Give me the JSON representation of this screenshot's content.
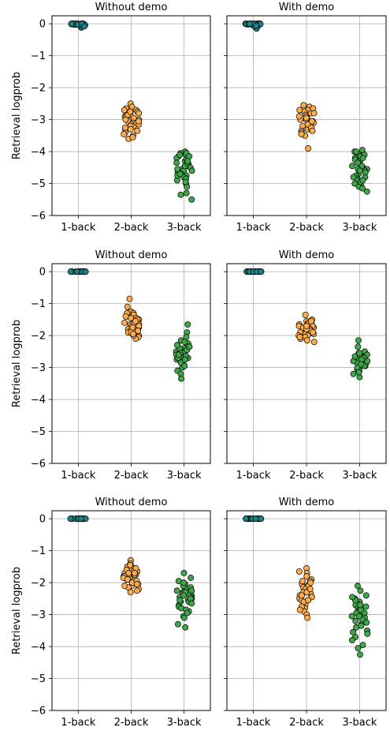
{
  "figure": {
    "ylabel": "Retrieval logprob",
    "y_ticks": [
      "0",
      "−1",
      "−2",
      "−3",
      "−4",
      "−5",
      "−6"
    ],
    "categories": [
      "1-back",
      "2-back",
      "3-back"
    ]
  },
  "colors": {
    "1-back": "#1b7f83",
    "2-back": "#ffad4a",
    "3-back": "#3fa64a",
    "grid": "#b0b0b0",
    "marker_edge": "#000000"
  },
  "chart_data": [
    {
      "type": "scatter",
      "title": "Without demo",
      "ylabel": "Retrieval logprob",
      "ylim": [
        -6,
        0.25
      ],
      "grid": true,
      "categories": [
        "1-back",
        "2-back",
        "3-back"
      ],
      "series": [
        {
          "category": "1-back",
          "values": [
            0,
            0,
            -0.02,
            0,
            -0.05,
            0,
            -0.01,
            0,
            -0.03,
            0,
            -0.12,
            0,
            0,
            -0.02,
            0,
            -0.06,
            0,
            -0.01,
            0,
            -0.04,
            0,
            0,
            -0.02,
            0,
            -0.08
          ]
        },
        {
          "category": "2-back",
          "values": [
            -2.5,
            -2.6,
            -2.65,
            -2.7,
            -2.75,
            -2.8,
            -2.85,
            -2.9,
            -2.95,
            -3.0,
            -3.05,
            -3.1,
            -3.15,
            -3.2,
            -3.25,
            -3.3,
            -3.35,
            -3.4,
            -3.5,
            -3.6,
            -2.7,
            -2.8,
            -3.0,
            -3.1,
            -3.2,
            -3.3,
            -2.9,
            -3.0,
            -3.15,
            -2.85,
            -3.05,
            -2.75,
            -3.25,
            -3.45,
            -3.55
          ]
        },
        {
          "category": "3-back",
          "values": [
            -4.0,
            -4.05,
            -4.1,
            -4.15,
            -4.2,
            -4.3,
            -4.35,
            -4.4,
            -4.45,
            -4.5,
            -4.55,
            -4.6,
            -4.65,
            -4.7,
            -4.75,
            -4.8,
            -4.9,
            -5.0,
            -5.1,
            -5.3,
            -5.35,
            -5.5,
            -4.25,
            -4.45,
            -4.6,
            -4.75,
            -4.85,
            -4.05,
            -4.15,
            -4.35,
            -4.55,
            -4.7,
            -4.95,
            -4.1,
            -4.3
          ]
        }
      ]
    },
    {
      "type": "scatter",
      "title": "With demo",
      "ylabel": "",
      "ylim": [
        -6,
        0.25
      ],
      "grid": true,
      "categories": [
        "1-back",
        "2-back",
        "3-back"
      ],
      "series": [
        {
          "category": "1-back",
          "values": [
            0,
            0,
            -0.02,
            0,
            -0.04,
            0,
            -0.01,
            0,
            -0.03,
            0,
            -0.15,
            0,
            -0.05,
            0,
            -0.02,
            0,
            -0.08,
            0,
            0,
            -0.01,
            0,
            -0.03,
            0,
            -0.06,
            0
          ]
        },
        {
          "category": "2-back",
          "values": [
            -2.55,
            -2.6,
            -2.7,
            -2.75,
            -2.8,
            -2.85,
            -2.9,
            -2.95,
            -3.0,
            -3.05,
            -3.1,
            -3.15,
            -3.2,
            -3.25,
            -3.3,
            -3.35,
            -3.4,
            -3.5,
            -3.9,
            -2.65,
            -2.8,
            -2.95,
            -3.1,
            -3.2,
            -3.3,
            -3.0,
            -3.15,
            -2.9,
            -3.25,
            -3.45,
            -3.05,
            -2.7,
            -3.35
          ]
        },
        {
          "category": "3-back",
          "values": [
            -3.95,
            -4.0,
            -4.05,
            -4.1,
            -4.15,
            -4.2,
            -4.3,
            -4.35,
            -4.4,
            -4.45,
            -4.5,
            -4.55,
            -4.6,
            -4.7,
            -4.75,
            -4.8,
            -4.85,
            -4.9,
            -5.0,
            -5.05,
            -5.1,
            -5.25,
            -4.25,
            -4.45,
            -4.65,
            -4.95,
            -4.1,
            -4.35,
            -4.55,
            -4.8,
            -5.15,
            -4.0,
            -4.2,
            -4.6,
            -4.9
          ]
        }
      ]
    },
    {
      "type": "scatter",
      "title": "Without demo",
      "ylabel": "Retrieval logprob",
      "ylim": [
        -6,
        0.25
      ],
      "grid": true,
      "categories": [
        "1-back",
        "2-back",
        "3-back"
      ],
      "series": [
        {
          "category": "1-back",
          "values": [
            0,
            0,
            0,
            0,
            0,
            0,
            0,
            0,
            0,
            0,
            0,
            0,
            0,
            0,
            0,
            0,
            0,
            0,
            0,
            0
          ]
        },
        {
          "category": "2-back",
          "values": [
            -0.85,
            -1.1,
            -1.25,
            -1.3,
            -1.35,
            -1.4,
            -1.45,
            -1.5,
            -1.55,
            -1.6,
            -1.65,
            -1.7,
            -1.75,
            -1.8,
            -1.85,
            -1.9,
            -1.95,
            -2.0,
            -2.05,
            -2.1,
            -1.3,
            -1.45,
            -1.6,
            -1.75,
            -1.9,
            -1.5,
            -1.65,
            -1.8,
            -2.0,
            -1.4,
            -1.55,
            -1.7,
            -1.85,
            -1.95,
            -1.6
          ]
        },
        {
          "category": "3-back",
          "values": [
            -1.65,
            -1.9,
            -2.05,
            -2.15,
            -2.25,
            -2.3,
            -2.35,
            -2.4,
            -2.45,
            -2.5,
            -2.55,
            -2.6,
            -2.65,
            -2.7,
            -2.75,
            -2.8,
            -2.85,
            -2.9,
            -3.0,
            -3.1,
            -3.2,
            -3.35,
            -2.2,
            -2.4,
            -2.55,
            -2.7,
            -2.85,
            -2.3,
            -2.5,
            -2.65,
            -2.45,
            -2.6,
            -2.75,
            -2.95,
            -2.35
          ]
        }
      ]
    },
    {
      "type": "scatter",
      "title": "With demo",
      "ylabel": "",
      "ylim": [
        -6,
        0.25
      ],
      "grid": true,
      "categories": [
        "1-back",
        "2-back",
        "3-back"
      ],
      "series": [
        {
          "category": "1-back",
          "values": [
            0,
            0,
            0,
            0,
            0,
            0,
            0,
            0,
            0,
            0,
            0,
            0,
            0,
            0,
            0,
            0,
            0,
            0,
            0,
            0
          ]
        },
        {
          "category": "2-back",
          "values": [
            -1.35,
            -1.5,
            -1.55,
            -1.6,
            -1.65,
            -1.7,
            -1.75,
            -1.8,
            -1.85,
            -1.9,
            -1.95,
            -2.0,
            -2.05,
            -2.1,
            -2.2,
            -1.6,
            -1.7,
            -1.8,
            -1.9,
            -2.0,
            -1.75,
            -1.85,
            -1.95,
            -1.65,
            -2.05,
            -1.55,
            -1.8,
            -1.9,
            -2.15,
            -1.7
          ]
        },
        {
          "category": "3-back",
          "values": [
            -2.15,
            -2.35,
            -2.5,
            -2.55,
            -2.6,
            -2.65,
            -2.7,
            -2.75,
            -2.8,
            -2.85,
            -2.9,
            -2.95,
            -3.0,
            -3.05,
            -3.1,
            -3.2,
            -3.3,
            -2.6,
            -2.7,
            -2.8,
            -2.9,
            -3.0,
            -2.75,
            -2.85,
            -2.95,
            -2.65,
            -3.15,
            -2.55,
            -2.8,
            -2.9
          ]
        }
      ]
    },
    {
      "type": "scatter",
      "title": "Without demo",
      "ylabel": "Retrieval logprob",
      "ylim": [
        -6,
        0.25
      ],
      "grid": true,
      "categories": [
        "1-back",
        "2-back",
        "3-back"
      ],
      "series": [
        {
          "category": "1-back",
          "values": [
            0,
            0,
            0,
            0,
            0,
            0,
            0,
            0,
            0,
            0,
            0,
            0,
            0,
            0,
            0,
            0,
            0,
            0,
            0,
            0
          ]
        },
        {
          "category": "2-back",
          "values": [
            -1.3,
            -1.4,
            -1.5,
            -1.55,
            -1.6,
            -1.65,
            -1.7,
            -1.75,
            -1.8,
            -1.85,
            -1.9,
            -1.95,
            -2.0,
            -2.05,
            -2.1,
            -2.15,
            -2.2,
            -2.3,
            -1.5,
            -1.6,
            -1.7,
            -1.8,
            -1.9,
            -2.0,
            -1.65,
            -1.75,
            -1.85,
            -2.25,
            -1.45,
            -1.95,
            -2.1,
            -1.55,
            -1.7,
            -1.9,
            -2.05
          ]
        },
        {
          "category": "3-back",
          "values": [
            -1.7,
            -1.85,
            -1.95,
            -2.05,
            -2.15,
            -2.2,
            -2.25,
            -2.3,
            -2.35,
            -2.4,
            -2.45,
            -2.5,
            -2.55,
            -2.6,
            -2.7,
            -2.75,
            -2.8,
            -2.9,
            -3.05,
            -3.1,
            -3.3,
            -3.4,
            -2.1,
            -2.35,
            -2.5,
            -2.65,
            -2.85,
            -2.0,
            -2.3,
            -2.45,
            -2.6,
            -2.95,
            -2.4,
            -2.55,
            -2.25
          ]
        }
      ]
    },
    {
      "type": "scatter",
      "title": "With demo",
      "ylabel": "",
      "ylim": [
        -6,
        0.25
      ],
      "grid": true,
      "categories": [
        "1-back",
        "2-back",
        "3-back"
      ],
      "series": [
        {
          "category": "1-back",
          "values": [
            0,
            0,
            0,
            0,
            0,
            0,
            0,
            0,
            0,
            0,
            0,
            0,
            0,
            0,
            0,
            0,
            0,
            0,
            0,
            0
          ]
        },
        {
          "category": "2-back",
          "values": [
            -1.55,
            -1.65,
            -1.7,
            -1.8,
            -1.9,
            -1.95,
            -2.0,
            -2.05,
            -2.1,
            -2.15,
            -2.2,
            -2.25,
            -2.3,
            -2.35,
            -2.4,
            -2.45,
            -2.5,
            -2.55,
            -2.6,
            -2.7,
            -2.8,
            -2.9,
            -3.0,
            -3.1,
            -1.95,
            -2.1,
            -2.3,
            -2.45,
            -2.6,
            -2.75,
            -2.2,
            -2.4,
            -2.55,
            -2.85,
            -2.0
          ]
        },
        {
          "category": "3-back",
          "values": [
            -2.1,
            -2.25,
            -2.4,
            -2.5,
            -2.6,
            -2.65,
            -2.7,
            -2.8,
            -2.85,
            -2.9,
            -2.95,
            -3.0,
            -3.05,
            -3.1,
            -3.2,
            -3.3,
            -3.4,
            -3.5,
            -3.6,
            -3.7,
            -3.8,
            -3.95,
            -4.05,
            -4.25,
            -2.55,
            -2.75,
            -2.95,
            -3.15,
            -3.35,
            -2.45,
            -2.85,
            -3.05,
            -3.25,
            -3.55,
            -2.7
          ]
        }
      ]
    }
  ]
}
